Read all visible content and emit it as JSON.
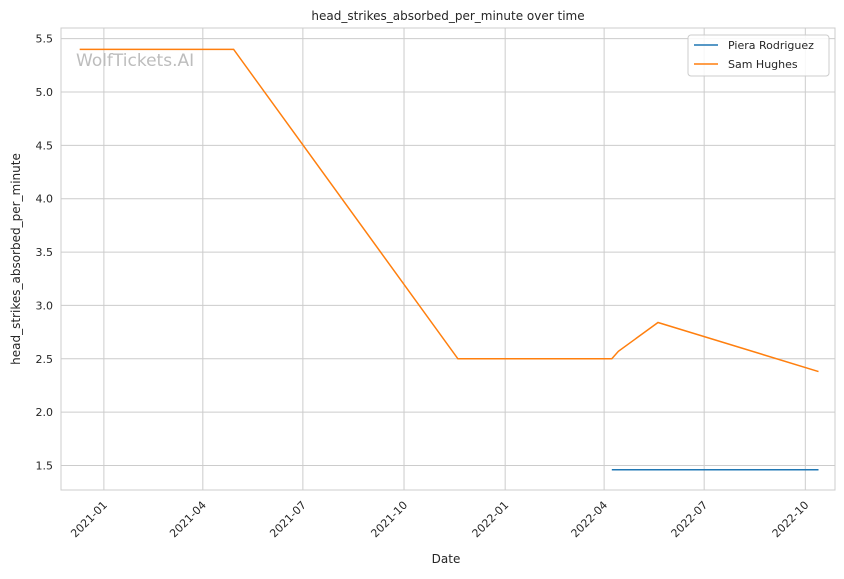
{
  "chart_data": {
    "type": "line",
    "title": "head_strikes_absorbed_per_minute over time",
    "xlabel": "Date",
    "ylabel": "head_strikes_absorbed_per_minute",
    "watermark": "WolfTickets.AI",
    "xlim": [
      "2020-11-23",
      "2022-10-28"
    ],
    "ylim": [
      1.27,
      5.6
    ],
    "x_ticks": [
      "2021-01",
      "2021-04",
      "2021-07",
      "2021-10",
      "2022-01",
      "2022-04",
      "2022-07",
      "2022-10"
    ],
    "y_ticks": [
      "1.5",
      "2.0",
      "2.5",
      "3.0",
      "3.5",
      "4.0",
      "4.5",
      "5.0",
      "5.5"
    ],
    "grid": true,
    "legend_position": "top-right",
    "series": [
      {
        "name": "Piera Rodriguez",
        "color": "#1f77b4",
        "points": [
          [
            "2022-04-08",
            1.46
          ],
          [
            "2022-10-13",
            1.46
          ]
        ]
      },
      {
        "name": "Sam Hughes",
        "color": "#ff7f0e",
        "points": [
          [
            "2020-12-10",
            5.4
          ],
          [
            "2021-04-29",
            5.4
          ],
          [
            "2021-11-19",
            2.5
          ],
          [
            "2022-04-08",
            2.5
          ],
          [
            "2022-04-14",
            2.57
          ],
          [
            "2022-05-20",
            2.84
          ],
          [
            "2022-10-13",
            2.38
          ]
        ]
      }
    ]
  }
}
